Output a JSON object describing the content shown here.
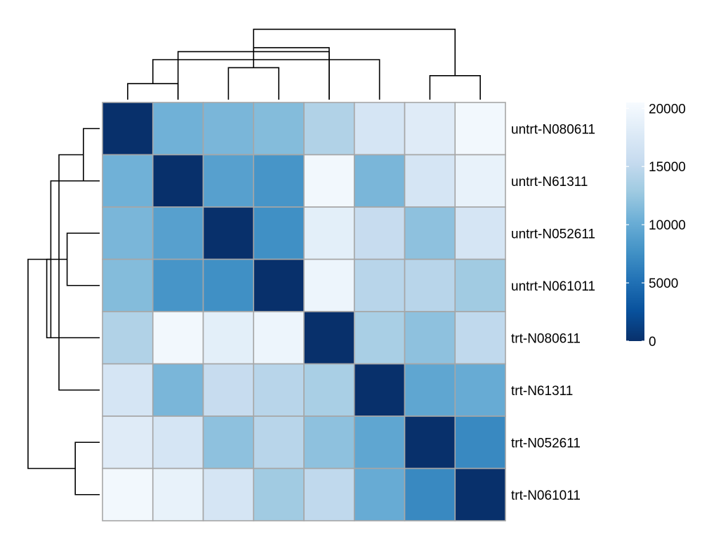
{
  "chart_data": {
    "type": "heatmap",
    "title": "",
    "rows": [
      "untrt-N080611",
      "untrt-N61311",
      "untrt-N052611",
      "untrt-N061011",
      "trt-N080611",
      "trt-N61311",
      "trt-N052611",
      "trt-N061011"
    ],
    "columns": [
      "untrt-N080611",
      "untrt-N61311",
      "untrt-N052611",
      "untrt-N061011",
      "trt-N080611",
      "trt-N61311",
      "trt-N052611",
      "trt-N061011"
    ],
    "values": [
      [
        0,
        10500,
        11000,
        11500,
        14000,
        17000,
        18000,
        20000
      ],
      [
        10500,
        0,
        9000,
        8000,
        20000,
        11000,
        17000,
        19000
      ],
      [
        11000,
        9000,
        0,
        7500,
        18500,
        15500,
        12000,
        17000
      ],
      [
        11500,
        8000,
        7500,
        0,
        19500,
        14500,
        14500,
        13000
      ],
      [
        14000,
        20000,
        18500,
        19500,
        0,
        13500,
        12000,
        15000
      ],
      [
        17000,
        11000,
        15500,
        14500,
        13500,
        0,
        9500,
        10000
      ],
      [
        18000,
        17000,
        12000,
        14500,
        12000,
        9500,
        0,
        7000
      ],
      [
        20000,
        19000,
        17000,
        13000,
        15000,
        10000,
        7000,
        0
      ]
    ],
    "colorbar": {
      "min": 0,
      "max": 20500,
      "ticks": [
        0,
        5000,
        10000,
        15000,
        20000
      ]
    },
    "color_scale": [
      "#08306b",
      "#08519c",
      "#2171b5",
      "#4292c6",
      "#6baed6",
      "#9ecae1",
      "#c6dbef",
      "#deebf7",
      "#f7fbff"
    ],
    "cell_border_color": "#a6a6a6",
    "dendrogram": {
      "merges": [
        [
          0,
          1,
          0.2
        ],
        [
          2,
          3,
          0.4
        ],
        [
          1,
          4,
          0.6
        ],
        [
          6,
          7,
          0.3
        ],
        [
          5,
          8,
          0.5
        ],
        [
          4,
          9,
          0.65
        ],
        [
          10,
          11,
          0.88
        ]
      ]
    }
  }
}
